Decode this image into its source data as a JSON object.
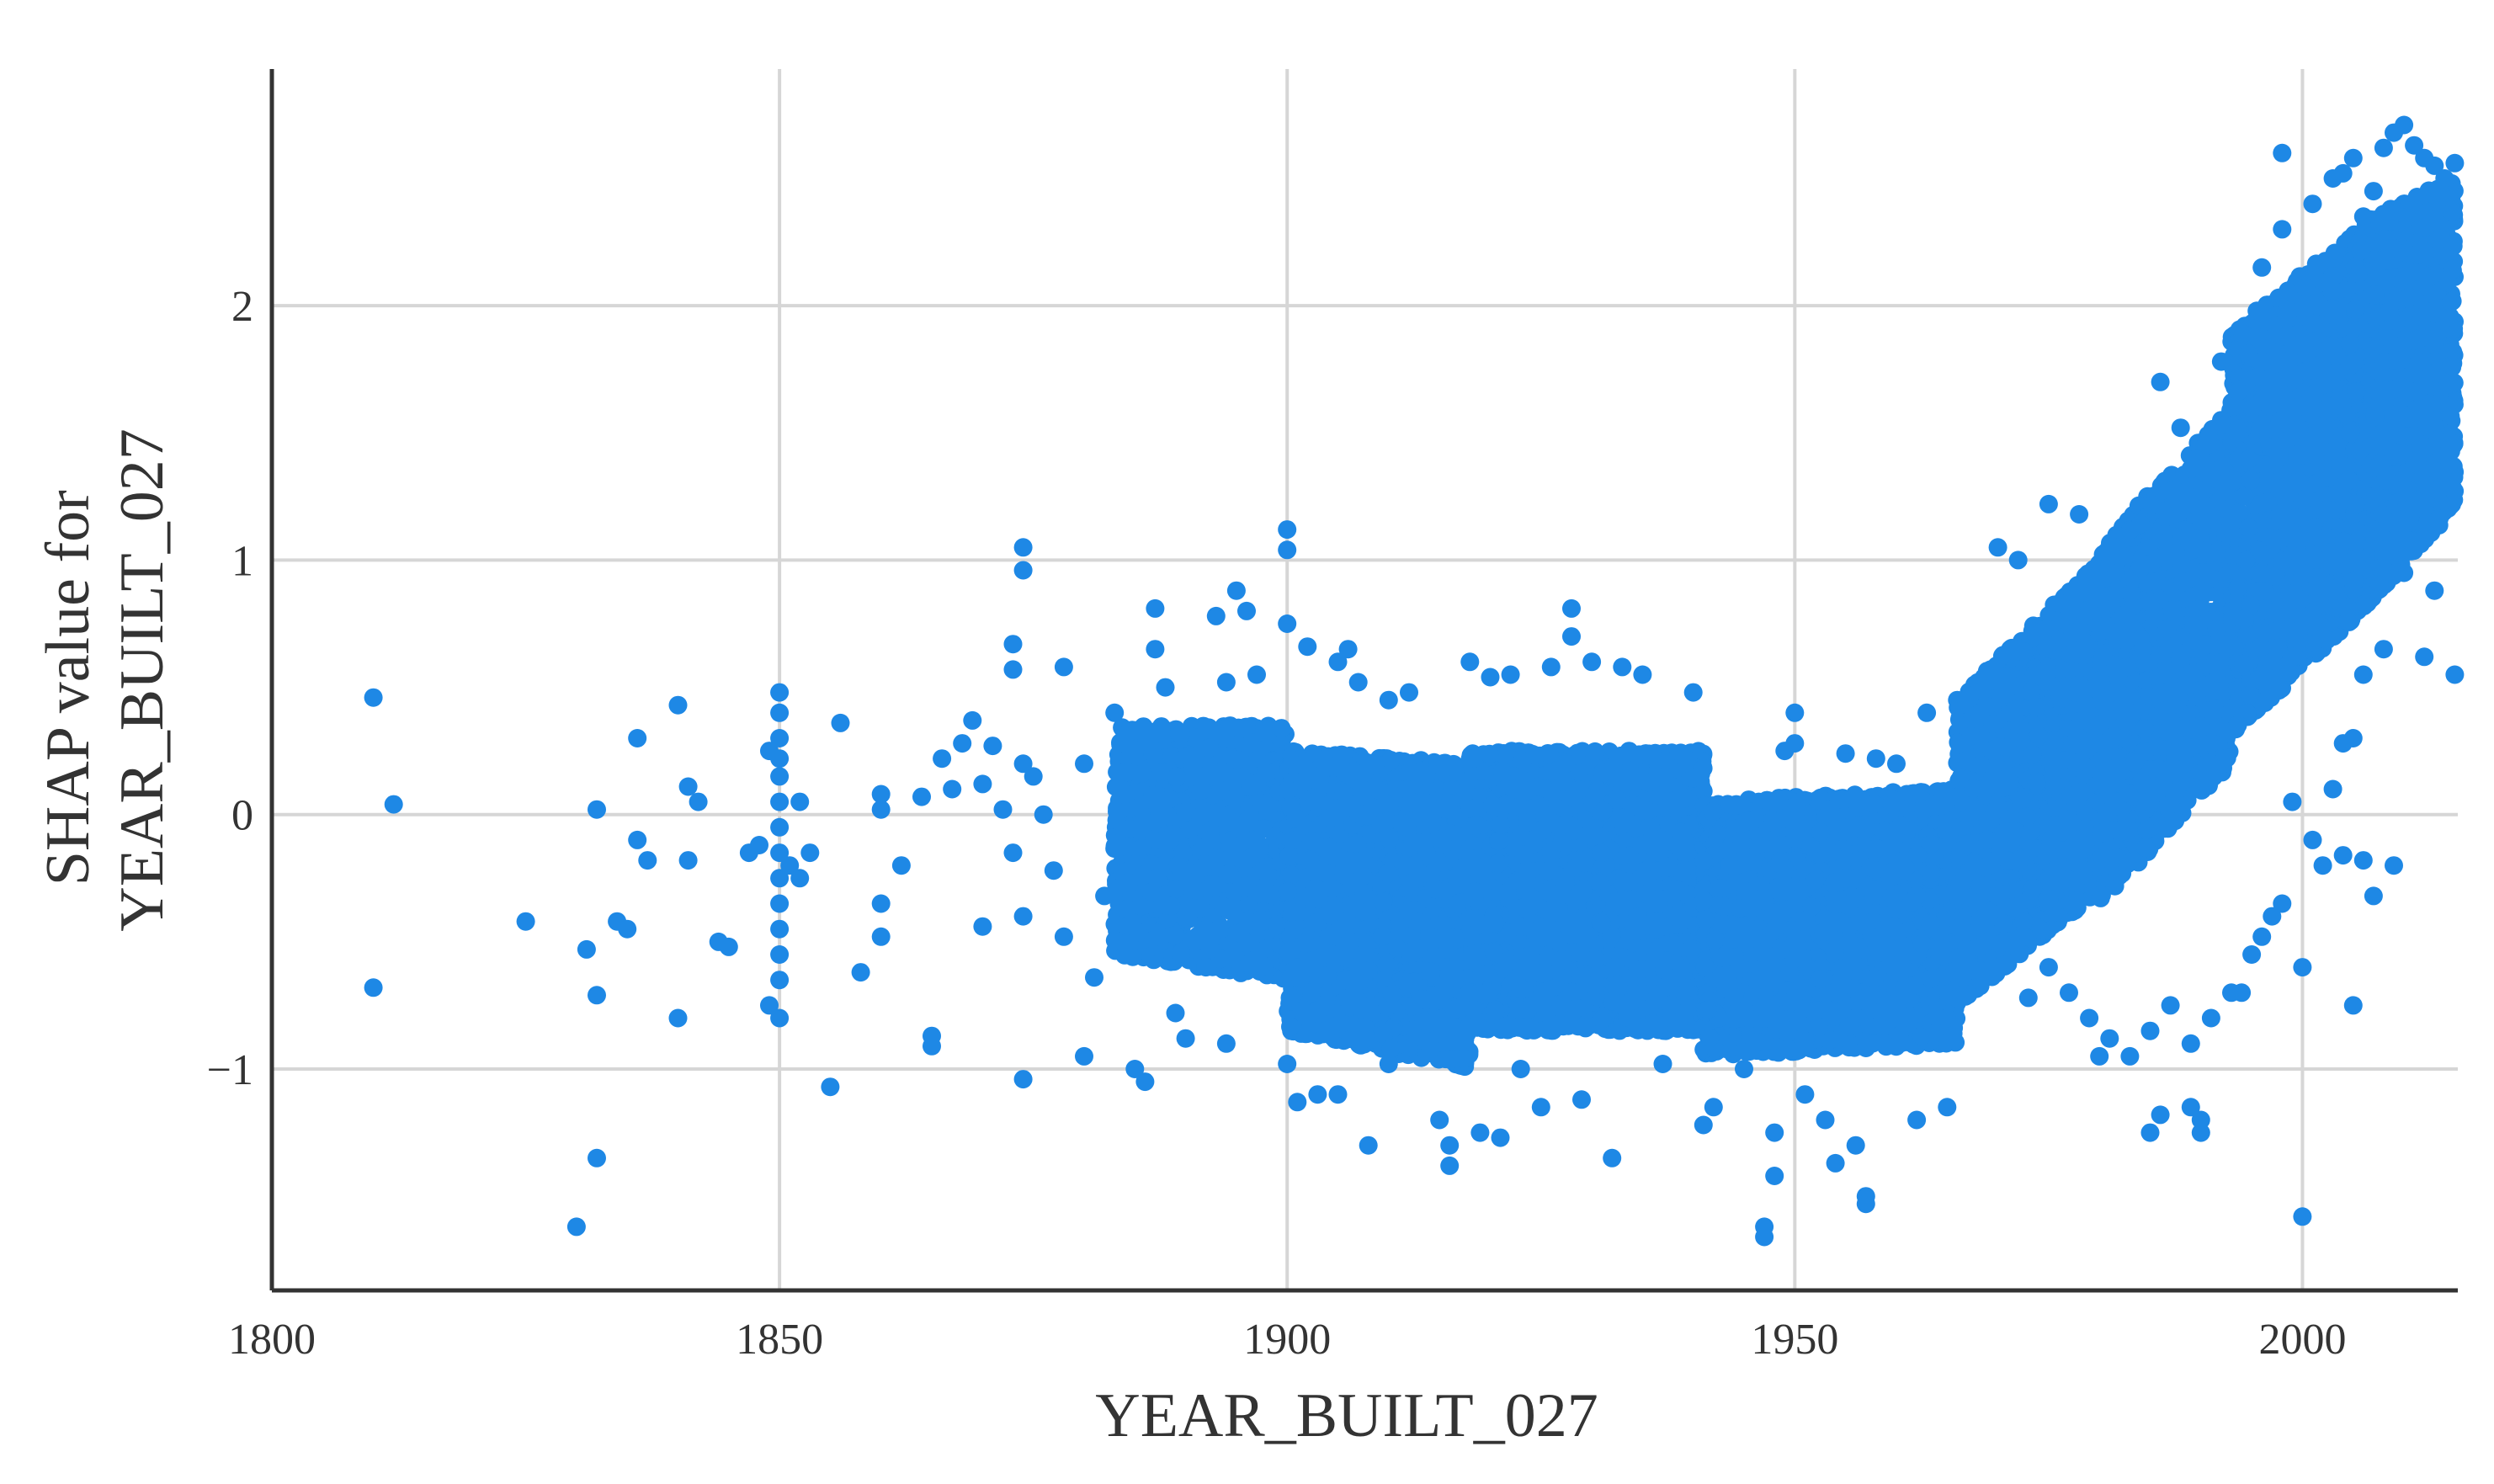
{
  "chart_data": {
    "type": "scatter",
    "title": "",
    "xlabel": "YEAR_BUILT_027",
    "ylabel_lines": [
      "SHAP value for",
      "YEAR_BUILT_027"
    ],
    "xlim": [
      1800,
      2015.3
    ],
    "ylim": [
      -1.87,
      2.93
    ],
    "xticks": [
      {
        "value": 1800,
        "label": "1800"
      },
      {
        "value": 1850,
        "label": "1850"
      },
      {
        "value": 1900,
        "label": "1900"
      },
      {
        "value": 1950,
        "label": "1950"
      },
      {
        "value": 2000,
        "label": "2000"
      }
    ],
    "yticks": [
      {
        "value": -1,
        "label": "−1"
      },
      {
        "value": 0,
        "label": "0"
      },
      {
        "value": 1,
        "label": "1"
      },
      {
        "value": 2,
        "label": "2"
      }
    ],
    "grid": true,
    "marker_color": "#1e88e5",
    "series": [
      {
        "points": [
          [
            1810,
            0.46
          ],
          [
            1810,
            -0.68
          ],
          [
            1812,
            0.04
          ],
          [
            1825,
            -0.42
          ],
          [
            1830,
            -1.62
          ],
          [
            1831,
            -0.53
          ],
          [
            1832,
            0.02
          ],
          [
            1832,
            -0.71
          ],
          [
            1832,
            -1.35
          ],
          [
            1834,
            -0.42
          ],
          [
            1835,
            -0.45
          ],
          [
            1836,
            0.3
          ],
          [
            1836,
            -0.1
          ],
          [
            1837,
            -0.18
          ],
          [
            1840,
            0.43
          ],
          [
            1840,
            -0.8
          ],
          [
            1841,
            0.11
          ],
          [
            1841,
            -0.18
          ],
          [
            1842,
            0.05
          ],
          [
            1844,
            -0.5
          ],
          [
            1845,
            -0.52
          ],
          [
            1847,
            -0.15
          ],
          [
            1848,
            -0.12
          ],
          [
            1849,
            0.25
          ],
          [
            1849,
            -0.75
          ],
          [
            1850,
            0.48
          ],
          [
            1850,
            0.4
          ],
          [
            1850,
            0.3
          ],
          [
            1850,
            0.22
          ],
          [
            1850,
            0.15
          ],
          [
            1850,
            0.05
          ],
          [
            1850,
            -0.05
          ],
          [
            1850,
            -0.15
          ],
          [
            1850,
            -0.25
          ],
          [
            1850,
            -0.35
          ],
          [
            1850,
            -0.45
          ],
          [
            1850,
            -0.55
          ],
          [
            1850,
            -0.65
          ],
          [
            1850,
            -0.8
          ],
          [
            1851,
            -0.2
          ],
          [
            1852,
            0.05
          ],
          [
            1852,
            -0.25
          ],
          [
            1853,
            -0.15
          ],
          [
            1855,
            -1.07
          ],
          [
            1856,
            0.36
          ],
          [
            1858,
            -0.62
          ],
          [
            1860,
            0.08
          ],
          [
            1860,
            0.02
          ],
          [
            1860,
            -0.35
          ],
          [
            1860,
            -0.48
          ],
          [
            1862,
            -0.2
          ],
          [
            1864,
            0.07
          ],
          [
            1865,
            -0.87
          ],
          [
            1865,
            -0.91
          ],
          [
            1866,
            0.22
          ],
          [
            1867,
            0.1
          ],
          [
            1868,
            0.28
          ],
          [
            1869,
            0.37
          ],
          [
            1870,
            0.12
          ],
          [
            1870,
            -0.44
          ],
          [
            1871,
            0.27
          ],
          [
            1872,
            0.02
          ],
          [
            1873,
            -0.15
          ],
          [
            1873,
            0.57
          ],
          [
            1873,
            0.67
          ],
          [
            1874,
            1.05
          ],
          [
            1874,
            0.96
          ],
          [
            1874,
            0.2
          ],
          [
            1874,
            -0.4
          ],
          [
            1874,
            -1.04
          ],
          [
            1875,
            0.15
          ],
          [
            1876,
            0.0
          ],
          [
            1877,
            -0.22
          ],
          [
            1878,
            0.58
          ],
          [
            1878,
            -0.48
          ],
          [
            1880,
            0.2
          ],
          [
            1880,
            -0.95
          ],
          [
            1881,
            -0.64
          ],
          [
            1882,
            -0.32
          ],
          [
            1883,
            0.4
          ],
          [
            1884,
            0.3
          ],
          [
            1885,
            -1.0
          ],
          [
            1886,
            -1.05
          ],
          [
            1887,
            0.81
          ],
          [
            1887,
            0.65
          ],
          [
            1888,
            0.5
          ],
          [
            1889,
            -0.78
          ],
          [
            1890,
            -0.88
          ],
          [
            1892,
            -0.6
          ],
          [
            1893,
            0.78
          ],
          [
            1894,
            0.52
          ],
          [
            1894,
            -0.9
          ],
          [
            1895,
            0.88
          ],
          [
            1896,
            0.8
          ],
          [
            1897,
            0.55
          ],
          [
            1900,
            1.12
          ],
          [
            1900,
            1.04
          ],
          [
            1900,
            0.75
          ],
          [
            1900,
            -0.98
          ],
          [
            1901,
            -1.13
          ],
          [
            1902,
            0.66
          ],
          [
            1903,
            -1.1
          ],
          [
            1905,
            0.6
          ],
          [
            1905,
            -1.1
          ],
          [
            1906,
            0.65
          ],
          [
            1907,
            0.52
          ],
          [
            1908,
            -1.3
          ],
          [
            1910,
            0.45
          ],
          [
            1910,
            -0.98
          ],
          [
            1912,
            0.48
          ],
          [
            1915,
            -1.2
          ],
          [
            1916,
            -1.38
          ],
          [
            1916,
            -1.3
          ],
          [
            1918,
            0.6
          ],
          [
            1919,
            -1.25
          ],
          [
            1920,
            0.54
          ],
          [
            1921,
            -1.27
          ],
          [
            1922,
            0.55
          ],
          [
            1923,
            -1.0
          ],
          [
            1925,
            -1.15
          ],
          [
            1926,
            0.58
          ],
          [
            1928,
            0.81
          ],
          [
            1928,
            0.7
          ],
          [
            1929,
            -1.12
          ],
          [
            1930,
            0.6
          ],
          [
            1932,
            -1.35
          ],
          [
            1933,
            0.58
          ],
          [
            1935,
            0.55
          ],
          [
            1937,
            -0.98
          ],
          [
            1940,
            0.48
          ],
          [
            1941,
            -1.22
          ],
          [
            1942,
            -1.15
          ],
          [
            1945,
            -1.0
          ],
          [
            1947,
            -1.62
          ],
          [
            1947,
            -1.66
          ],
          [
            1948,
            -1.42
          ],
          [
            1948,
            -1.25
          ],
          [
            1949,
            0.25
          ],
          [
            1950,
            0.4
          ],
          [
            1950,
            0.28
          ],
          [
            1951,
            -1.1
          ],
          [
            1953,
            -1.2
          ],
          [
            1954,
            -1.37
          ],
          [
            1955,
            0.24
          ],
          [
            1956,
            -1.3
          ],
          [
            1957,
            -1.5
          ],
          [
            1957,
            -1.53
          ],
          [
            1958,
            0.22
          ],
          [
            1960,
            0.2
          ],
          [
            1962,
            -1.2
          ],
          [
            1963,
            0.4
          ],
          [
            1965,
            -1.15
          ],
          [
            1966,
            0.45
          ],
          [
            1969,
            -0.1
          ],
          [
            1970,
            1.05
          ],
          [
            1972,
            1.0
          ],
          [
            1975,
            1.22
          ],
          [
            1978,
            1.18
          ],
          [
            1980,
            -0.95
          ],
          [
            1985,
            -1.25
          ],
          [
            1986,
            1.7
          ],
          [
            1986,
            -1.18
          ],
          [
            1988,
            1.52
          ],
          [
            1989,
            -1.15
          ],
          [
            1990,
            -1.2
          ],
          [
            1990,
            -1.25
          ],
          [
            1992,
            1.78
          ],
          [
            1994,
            -0.7
          ],
          [
            1996,
            2.15
          ],
          [
            1998,
            2.3
          ],
          [
            1998,
            2.6
          ],
          [
            2000,
            -1.58
          ],
          [
            2000,
            -0.6
          ],
          [
            2001,
            2.4
          ],
          [
            2003,
            2.5
          ],
          [
            2004,
            2.52
          ],
          [
            2005,
            2.58
          ],
          [
            2005,
            -0.75
          ],
          [
            2006,
            2.35
          ],
          [
            2007,
            2.45
          ],
          [
            2008,
            2.62
          ],
          [
            2009,
            2.68
          ],
          [
            2010,
            2.71
          ],
          [
            2011,
            2.63
          ],
          [
            2012,
            2.58
          ],
          [
            2013,
            2.55
          ],
          [
            2014,
            2.5
          ],
          [
            2015,
            2.56
          ],
          [
            2015,
            0.55
          ],
          [
            2013,
            0.88
          ],
          [
            2012,
            0.62
          ],
          [
            2010,
            0.95
          ],
          [
            2008,
            0.65
          ],
          [
            2006,
            0.55
          ],
          [
            2005,
            0.3
          ],
          [
            2004,
            0.28
          ],
          [
            2003,
            0.1
          ],
          [
            2002,
            -0.2
          ],
          [
            2001,
            -0.1
          ],
          [
            1999,
            0.05
          ],
          [
            1998,
            -0.35
          ],
          [
            1997,
            -0.4
          ],
          [
            1996,
            -0.48
          ],
          [
            1995,
            -0.55
          ],
          [
            1993,
            -0.7
          ],
          [
            1991,
            -0.8
          ],
          [
            1989,
            -0.9
          ],
          [
            1987,
            -0.75
          ],
          [
            1985,
            -0.85
          ],
          [
            1983,
            -0.95
          ],
          [
            1981,
            -0.88
          ],
          [
            1979,
            -0.8
          ],
          [
            1977,
            -0.7
          ],
          [
            1975,
            -0.6
          ],
          [
            1973,
            -0.72
          ],
          [
            2004,
            -0.16
          ],
          [
            2006,
            -0.18
          ],
          [
            2007,
            -0.32
          ],
          [
            2009,
            -0.2
          ]
        ]
      }
    ],
    "density_regions": [
      {
        "x_range": [
          1883,
          1900
        ],
        "y_center_range": [
          -0.1,
          -0.15
        ],
        "half_width": [
          0.45,
          0.5
        ],
        "density": 0.5
      },
      {
        "x_range": [
          1900,
          1918
        ],
        "y_center_range": [
          -0.3,
          -0.4
        ],
        "half_width": [
          0.55,
          0.6
        ],
        "density": 1.0
      },
      {
        "x_range": [
          1918,
          1941
        ],
        "y_center_range": [
          -0.3,
          -0.3
        ],
        "half_width": [
          0.55,
          0.55
        ],
        "density": 1.0
      },
      {
        "x_range": [
          1941,
          1966
        ],
        "y_center_range": [
          -0.45,
          -0.4
        ],
        "half_width": [
          0.5,
          0.5
        ],
        "density": 1.0
      },
      {
        "x_range": [
          1966,
          1980
        ],
        "y_center_range": [
          -0.15,
          0.35
        ],
        "half_width": [
          0.6,
          0.65
        ],
        "density": 1.0
      },
      {
        "x_range": [
          1980,
          1993
        ],
        "y_center_range": [
          0.35,
          0.9
        ],
        "half_width": [
          0.7,
          0.7
        ],
        "density": 1.0
      },
      {
        "x_range": [
          1993,
          2007
        ],
        "y_center_range": [
          1.1,
          1.6
        ],
        "half_width": [
          0.8,
          0.75
        ],
        "density": 1.0
      },
      {
        "x_range": [
          2007,
          2015
        ],
        "y_center_range": [
          1.6,
          1.85
        ],
        "half_width": [
          0.75,
          0.65
        ],
        "density": 1.0
      }
    ]
  }
}
